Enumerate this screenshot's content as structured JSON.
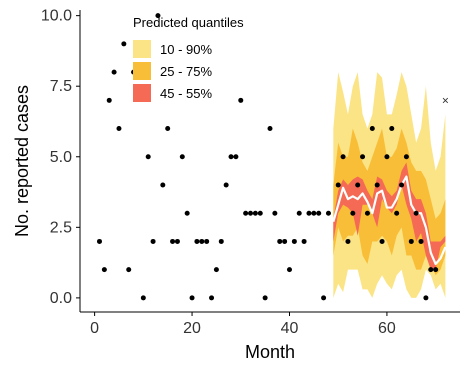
{
  "chart_data": {
    "type": "scatter",
    "title": "",
    "xlabel": "Month",
    "ylabel": "No. reported cases",
    "xlim": [
      -3,
      75
    ],
    "ylim": [
      -0.5,
      10.2
    ],
    "x_ticks": [
      0,
      20,
      40,
      60
    ],
    "y_ticks": [
      0.0,
      2.5,
      5.0,
      7.5,
      10.0
    ],
    "x_tick_labels": [
      "0",
      "20",
      "40",
      "60"
    ],
    "y_tick_labels": [
      "0.0",
      "2.5",
      "5.0",
      "7.5",
      "10.0"
    ],
    "grid": false,
    "legend": {
      "title": "Predicted quantiles",
      "placement": "top-left",
      "entries": [
        {
          "label": "10 - 90%",
          "color": "#fbe486"
        },
        {
          "label": "25 - 75%",
          "color": "#f9be38"
        },
        {
          "label": "45 - 55%",
          "color": "#f56a55"
        }
      ]
    },
    "points": [
      [
        1,
        2
      ],
      [
        2,
        1
      ],
      [
        3,
        7
      ],
      [
        4,
        8
      ],
      [
        5,
        6
      ],
      [
        6,
        9
      ],
      [
        7,
        1
      ],
      [
        8,
        8
      ],
      [
        9,
        8
      ],
      [
        10,
        0
      ],
      [
        11,
        5
      ],
      [
        12,
        2
      ],
      [
        13,
        10
      ],
      [
        14,
        4
      ],
      [
        15,
        6
      ],
      [
        16,
        2
      ],
      [
        17,
        2
      ],
      [
        18,
        5
      ],
      [
        19,
        3
      ],
      [
        20,
        0
      ],
      [
        21,
        2
      ],
      [
        22,
        2
      ],
      [
        23,
        2
      ],
      [
        24,
        0
      ],
      [
        25,
        1
      ],
      [
        26,
        2
      ],
      [
        27,
        4
      ],
      [
        28,
        5
      ],
      [
        29,
        5
      ],
      [
        30,
        7
      ],
      [
        31,
        3
      ],
      [
        32,
        3
      ],
      [
        33,
        3
      ],
      [
        34,
        3
      ],
      [
        35,
        0
      ],
      [
        36,
        6
      ],
      [
        37,
        3
      ],
      [
        38,
        2
      ],
      [
        39,
        2
      ],
      [
        40,
        1
      ],
      [
        41,
        2
      ],
      [
        42,
        3
      ],
      [
        43,
        2
      ],
      [
        44,
        3
      ],
      [
        45,
        3
      ],
      [
        46,
        3
      ],
      [
        47,
        0
      ],
      [
        48,
        3
      ],
      [
        50,
        4
      ],
      [
        51,
        5
      ],
      [
        52,
        2
      ],
      [
        53,
        3
      ],
      [
        54,
        4
      ],
      [
        55,
        5
      ],
      [
        56,
        3
      ],
      [
        57,
        6
      ],
      [
        58,
        4
      ],
      [
        59,
        2
      ],
      [
        60,
        5
      ],
      [
        61,
        6
      ],
      [
        62,
        3
      ],
      [
        63,
        4
      ],
      [
        64,
        5
      ],
      [
        65,
        2
      ],
      [
        66,
        3
      ],
      [
        67,
        2
      ],
      [
        68,
        0
      ],
      [
        69,
        1
      ],
      [
        70,
        1
      ]
    ],
    "prediction": {
      "x": [
        49,
        50,
        51,
        52,
        53,
        54,
        55,
        56,
        57,
        58,
        59,
        60,
        61,
        62,
        63,
        64,
        65,
        66,
        67,
        68,
        69,
        70,
        71,
        72
      ],
      "q10": [
        0,
        0.5,
        0.2,
        1.0,
        1.0,
        1.0,
        0.3,
        0.3,
        0.0,
        0.5,
        0.8,
        0.5,
        0.3,
        0.8,
        1.0,
        0.3,
        0.0,
        0.0,
        0.3,
        1.0,
        0.8,
        0.3,
        0.5,
        0
      ],
      "q25": [
        1.5,
        2.5,
        2.0,
        2.2,
        2.2,
        2.5,
        1.5,
        1.2,
        2.0,
        2.0,
        2.2,
        2.0,
        1.5,
        2.2,
        2.5,
        1.5,
        1.5,
        1.0,
        1.0,
        1.5,
        1.2,
        0.8,
        1.0,
        1.5
      ],
      "q45": [
        2.0,
        3.0,
        3.3,
        3.2,
        3.0,
        2.2,
        3.3,
        3.3,
        3.0,
        2.5,
        3.5,
        3.2,
        3.0,
        3.3,
        4.0,
        3.3,
        2.8,
        2.0,
        2.3,
        1.5,
        1.0,
        1.0,
        1.8,
        2.0
      ],
      "median": [
        2.7,
        3.3,
        3.9,
        3.5,
        3.6,
        3.5,
        3.7,
        3.4,
        3.0,
        3.7,
        3.8,
        3.2,
        3.2,
        3.5,
        4.0,
        4.3,
        3.3,
        3.0,
        3.0,
        2.5,
        1.6,
        1.2,
        1.4,
        1.8
      ],
      "q55": [
        2.8,
        3.8,
        4.2,
        4.0,
        4.2,
        4.3,
        4.2,
        3.8,
        3.5,
        4.3,
        4.2,
        3.8,
        3.6,
        3.8,
        4.5,
        4.8,
        3.8,
        3.5,
        3.5,
        3.0,
        2.0,
        2.0,
        2.0,
        2.2
      ],
      "q75": [
        4.0,
        5.5,
        5.0,
        5.0,
        6.0,
        5.5,
        4.8,
        4.5,
        5.0,
        5.5,
        6.0,
        5.0,
        5.0,
        5.3,
        6.0,
        5.5,
        4.8,
        4.5,
        4.5,
        4.2,
        3.5,
        2.8,
        3.0,
        3.5
      ],
      "q90": [
        6.0,
        8.0,
        7.3,
        6.5,
        7.5,
        8.0,
        6.5,
        6.0,
        6.5,
        8.0,
        7.8,
        6.5,
        6.5,
        7.2,
        8.0,
        7.5,
        6.5,
        5.5,
        6.0,
        7.5,
        5.5,
        4.5,
        5.0,
        6.5
      ]
    },
    "outlier_marker": {
      "symbol": "×",
      "x": 72,
      "y": 7
    }
  }
}
